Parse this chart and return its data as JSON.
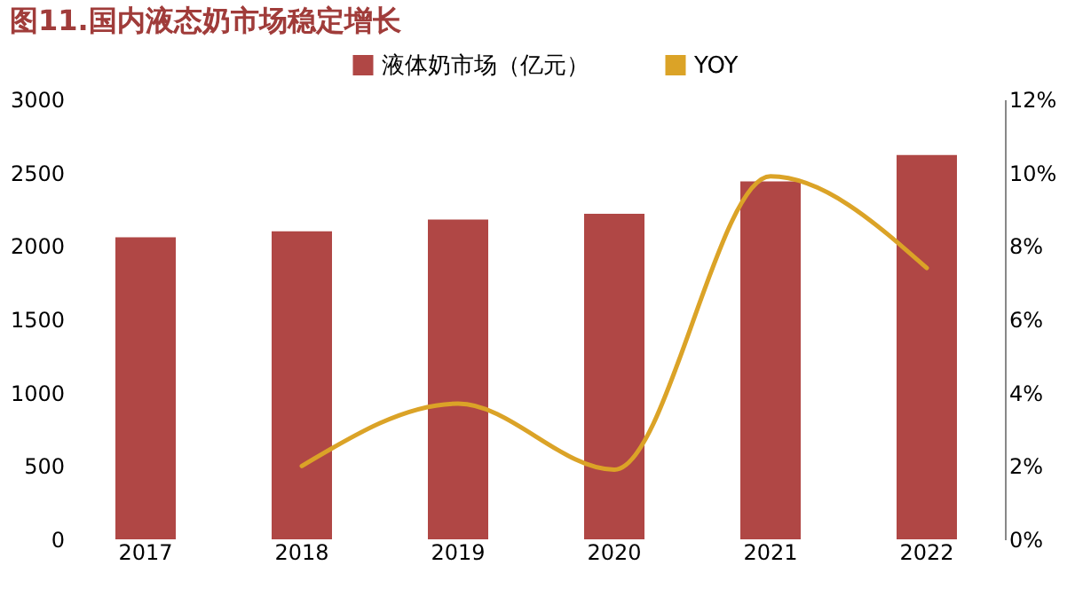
{
  "chart_data": {
    "type": "bar",
    "title": "图11.国内液态奶市场稳定增长",
    "categories": [
      "2017",
      "2018",
      "2019",
      "2020",
      "2021",
      "2022"
    ],
    "series": [
      {
        "name": "液体奶市场（亿元）",
        "color": "#b04745",
        "values": [
          2060,
          2100,
          2180,
          2220,
          2440,
          2620
        ]
      },
      {
        "name": "YOY",
        "type": "line",
        "axis": "y2",
        "color": "#dba327",
        "values": [
          null,
          2.0,
          3.7,
          1.9,
          9.9,
          7.4
        ]
      }
    ],
    "ylim": [
      0,
      3000
    ],
    "yticks": [
      0,
      500,
      1000,
      1500,
      2000,
      2500,
      3000
    ],
    "y2lim": [
      0,
      12
    ],
    "y2ticks": [
      {
        "value": 0,
        "label": "0%"
      },
      {
        "value": 2,
        "label": "2%"
      },
      {
        "value": 4,
        "label": "4%"
      },
      {
        "value": 6,
        "label": "6%"
      },
      {
        "value": 8,
        "label": "8%"
      },
      {
        "value": 10,
        "label": "10%"
      },
      {
        "value": 12,
        "label": "12%"
      }
    ],
    "grid": false,
    "legend": "top",
    "marker": "none",
    "line_style": "solid"
  }
}
